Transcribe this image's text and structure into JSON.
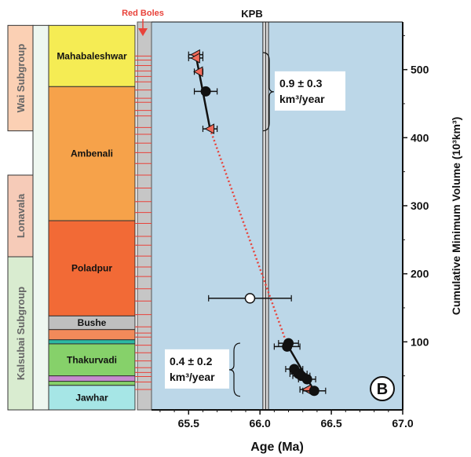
{
  "chart_data": {
    "type": "scatter",
    "xlabel": "Age (Ma)",
    "ylabel": "Cumulative Minimum Volume (10³km³)",
    "x_ticks": [
      "65.5",
      "66.0",
      "66.5",
      "67.0"
    ],
    "y_ticks": [
      "100",
      "200",
      "300",
      "400",
      "500"
    ],
    "xlim": [
      65.24,
      67.0
    ],
    "ylim": [
      0,
      570
    ],
    "kpb": {
      "label": "KPB",
      "age_range": [
        66.02,
        66.06
      ]
    },
    "red_boles_label": "Red Boles",
    "panel_label": "B",
    "groups": [
      {
        "name": "Wai Subgroup",
        "from": 410,
        "to": 565
      },
      {
        "name": "Lonavala",
        "from": 225,
        "to": 345
      },
      {
        "name": "Kalsubai Subgroup",
        "from": 0,
        "to": 225
      }
    ],
    "formations": [
      {
        "name": "Mahabaleshwar",
        "from": 475,
        "to": 565,
        "color": "#f5ec54",
        "label": "Mahabaleshwar"
      },
      {
        "name": "Ambenali",
        "from": 278,
        "to": 475,
        "color": "#f6a24a",
        "label": "Ambenali"
      },
      {
        "name": "Poladpur",
        "from": 138,
        "to": 278,
        "color": "#f26a36",
        "label": "Poladpur"
      },
      {
        "name": "Bushe",
        "from": 118,
        "to": 138,
        "color": "#bfbfbf",
        "label": "Bushe"
      },
      {
        "name": "Bushe-lower",
        "from": 103,
        "to": 118,
        "color": "#f28a5a",
        "label": ""
      },
      {
        "name": "Bushe-teal",
        "from": 97,
        "to": 103,
        "color": "#2cb8a3",
        "label": ""
      },
      {
        "name": "Thakurvadi",
        "from": 50,
        "to": 97,
        "color": "#86d16a",
        "label": "Thakurvadi"
      },
      {
        "name": "Thakurvadi-pink",
        "from": 42,
        "to": 50,
        "color": "#c78bd0",
        "label": ""
      },
      {
        "name": "Thakurvadi-green",
        "from": 36,
        "to": 42,
        "color": "#86d16a",
        "label": ""
      },
      {
        "name": "Jawhar",
        "from": 0,
        "to": 36,
        "color": "#a6e6e6",
        "label": "Jawhar"
      }
    ],
    "red_bole_levels": [
      520,
      514,
      506,
      498,
      490,
      482,
      470,
      458,
      452,
      440,
      432,
      415,
      405,
      392,
      378,
      362,
      345,
      326,
      306,
      290,
      274,
      255,
      242,
      226,
      210,
      196,
      178,
      160,
      140,
      122,
      113,
      107,
      95,
      84,
      72,
      62,
      55,
      49,
      41,
      30
    ],
    "points": [
      {
        "shape": "triangle",
        "x": 65.55,
        "y": 522,
        "xerr": 0.05
      },
      {
        "shape": "triangle",
        "x": 65.55,
        "y": 517,
        "xerr": 0.05
      },
      {
        "shape": "triangle",
        "x": 65.57,
        "y": 497,
        "xerr": 0.03
      },
      {
        "shape": "circle",
        "x": 65.62,
        "y": 468,
        "xerr": 0.08
      },
      {
        "shape": "triangle",
        "x": 65.65,
        "y": 413,
        "xerr": 0.05
      },
      {
        "shape": "circle_open",
        "x": 65.93,
        "y": 164,
        "xerr": 0.29
      },
      {
        "shape": "circle",
        "x": 66.2,
        "y": 98,
        "xerr": 0.07
      },
      {
        "shape": "circle",
        "x": 66.19,
        "y": 93,
        "xerr": 0.09
      },
      {
        "shape": "circle",
        "x": 66.24,
        "y": 60,
        "xerr": 0.06
      },
      {
        "shape": "circle",
        "x": 66.27,
        "y": 53,
        "xerr": 0.06
      },
      {
        "shape": "circle",
        "x": 66.29,
        "y": 50,
        "xerr": 0.06
      },
      {
        "shape": "circle",
        "x": 66.33,
        "y": 45,
        "xerr": 0.06
      },
      {
        "shape": "triangle",
        "x": 66.33,
        "y": 30,
        "xerr": 0.05
      },
      {
        "shape": "circle",
        "x": 66.38,
        "y": 28,
        "xerr": 0.08
      }
    ],
    "fit_upper": [
      [
        65.55,
        522
      ],
      [
        65.65,
        413
      ]
    ],
    "fit_lower": [
      [
        66.19,
        96
      ],
      [
        66.38,
        28
      ]
    ],
    "dotted_link": [
      [
        65.65,
        413
      ],
      [
        66.19,
        96
      ]
    ],
    "rates": [
      {
        "line1": "0.9 ± 0.3",
        "line2": "km³/year",
        "y_from": 410,
        "y_to": 525
      },
      {
        "line1": "0.4 ± 0.2",
        "line2": "km³/year",
        "y_from": 20,
        "y_to": 98
      }
    ]
  }
}
